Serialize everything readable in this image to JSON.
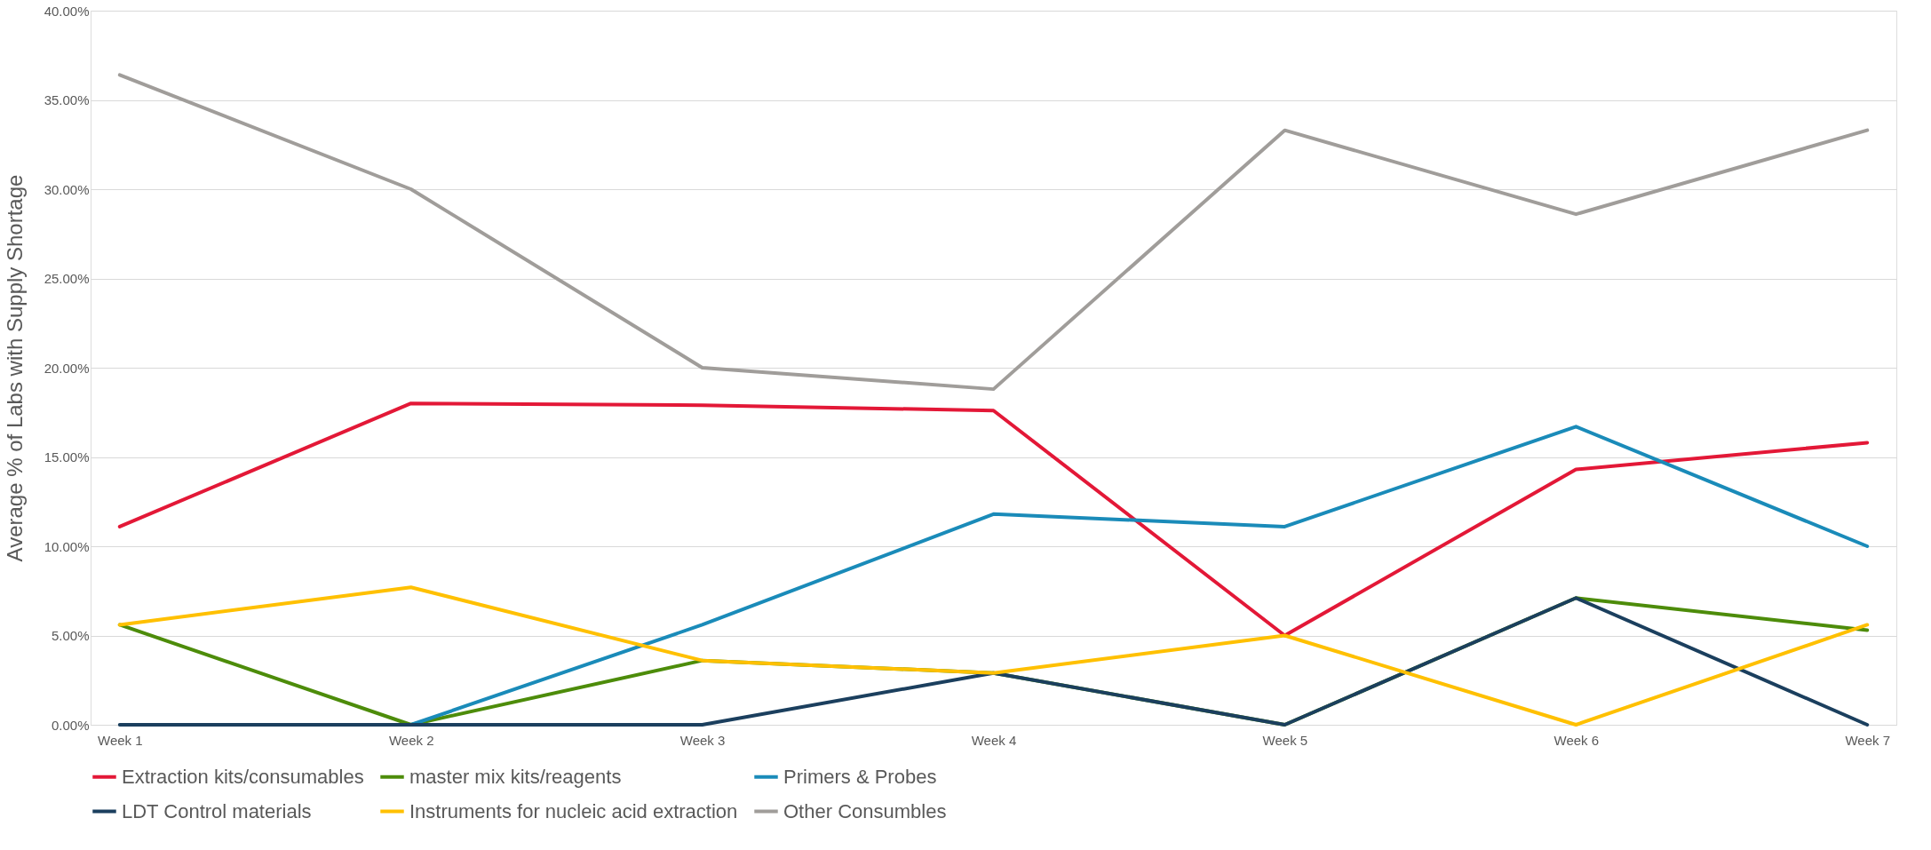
{
  "chart_data": {
    "type": "line",
    "ylabel": "Average % of Labs with Supply Shortage",
    "categories": [
      "Week 1",
      "Week 2",
      "Week 3",
      "Week 4",
      "Week 5",
      "Week 6",
      "Week 7"
    ],
    "series": [
      {
        "name": "Extraction kits/consumables",
        "color": "#e31837",
        "values": [
          11.1,
          18.0,
          17.9,
          17.6,
          5.0,
          14.3,
          15.8
        ]
      },
      {
        "name": "master mix kits/reagents",
        "color": "#4d8c0a",
        "values": [
          5.6,
          0,
          3.6,
          2.9,
          0,
          7.1,
          5.3
        ]
      },
      {
        "name": "Primers & Probes",
        "color": "#1a8bb9",
        "values": [
          null,
          0,
          5.6,
          11.8,
          11.1,
          16.7,
          10.0
        ]
      },
      {
        "name": "LDT Control materials",
        "color": "#1b3f5e",
        "values": [
          0,
          0,
          0,
          2.9,
          0,
          7.1,
          0
        ]
      },
      {
        "name": "Instruments for nucleic acid extraction",
        "color": "#ffc000",
        "values": [
          5.6,
          7.7,
          3.6,
          2.9,
          5.0,
          0,
          5.6
        ]
      },
      {
        "name": "Other Consumbles",
        "color": "#a09d9a",
        "values": [
          36.4,
          30.0,
          20.0,
          18.8,
          33.3,
          28.6,
          33.3
        ]
      }
    ],
    "ylim": [
      0,
      40
    ],
    "yticks": [
      {
        "value": 0,
        "label": "0.00%"
      },
      {
        "value": 5,
        "label": "5.00%"
      },
      {
        "value": 10,
        "label": "10.00%"
      },
      {
        "value": 15,
        "label": "15.00%"
      },
      {
        "value": 20,
        "label": "20.00%"
      },
      {
        "value": 25,
        "label": "25.00%"
      },
      {
        "value": 30,
        "label": "30.00%"
      },
      {
        "value": 35,
        "label": "35.00%"
      },
      {
        "value": 40,
        "label": "40.00%"
      }
    ],
    "grid": "y",
    "legend": "bottom",
    "marker": "none",
    "line_style": "solid"
  }
}
